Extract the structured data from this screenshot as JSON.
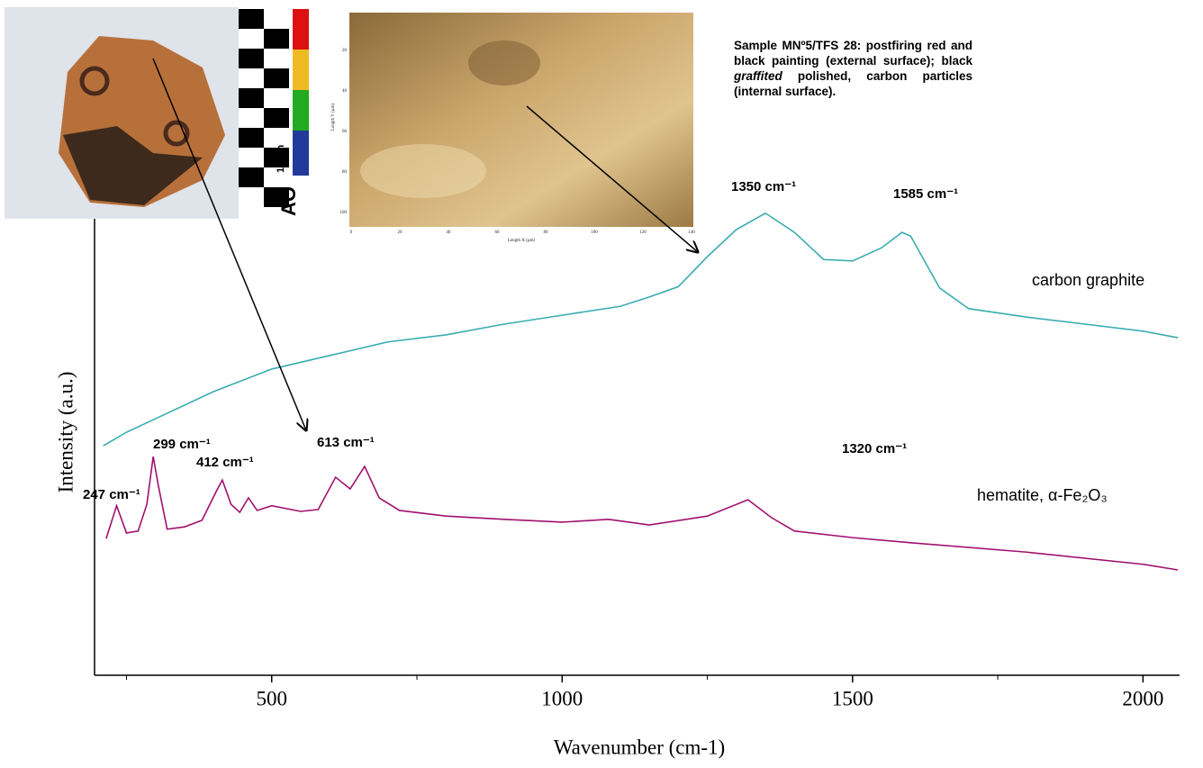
{
  "chart_data": {
    "type": "line",
    "x_label": "Wavenumber (cm-1)",
    "y_label": "Intensity (a.u.)",
    "xlim": [
      195,
      2063
    ],
    "xticks": [
      500,
      1000,
      1500,
      2000
    ],
    "xminorticks": [
      250,
      750,
      1250,
      1750
    ],
    "ylim": [
      0,
      100
    ],
    "series": [
      {
        "name": "carbon graphite",
        "color": "#3aacb0",
        "x": [
          210,
          250,
          300,
          400,
          500,
          600,
          700,
          800,
          900,
          1000,
          1100,
          1150,
          1200,
          1250,
          1300,
          1350,
          1400,
          1450,
          1500,
          1550,
          1585,
          1600,
          1650,
          1700,
          1800,
          1900,
          2000,
          2060
        ],
        "values": [
          49,
          51.9,
          54.8,
          60.6,
          65.4,
          68.3,
          71.2,
          72.7,
          75,
          76.9,
          78.8,
          80.8,
          83,
          89.4,
          95.2,
          98.7,
          94.6,
          88.8,
          88.5,
          91.3,
          94.6,
          93.8,
          82.7,
          78.3,
          76.5,
          75,
          73.5,
          72.1
        ]
      },
      {
        "name": "hematite, α-Fe₂O₃",
        "color": "#a0106e",
        "x": [
          215,
          233,
          250,
          270,
          285,
          296,
          305,
          320,
          350,
          380,
          405,
          415,
          430,
          445,
          460,
          475,
          500,
          550,
          580,
          610,
          635,
          660,
          685,
          720,
          800,
          900,
          1000,
          1080,
          1150,
          1250,
          1320,
          1360,
          1400,
          1500,
          1600,
          1800,
          2000,
          2060
        ],
        "values": [
          29.2,
          36.2,
          30.4,
          30.8,
          36.5,
          46.7,
          40.4,
          31.2,
          31.7,
          33.1,
          39.4,
          41.7,
          36.5,
          34.8,
          37.9,
          35.2,
          36.2,
          35,
          35.4,
          42.3,
          39.8,
          44.6,
          37.9,
          35.2,
          34,
          33.3,
          32.7,
          33.3,
          32.1,
          34,
          37.5,
          33.7,
          30.8,
          29.4,
          28.3,
          26.3,
          23.7,
          22.5
        ]
      }
    ],
    "annotations": [
      "1350 cm⁻¹",
      "1585 cm⁻¹",
      "247 cm⁻¹",
      "299 cm⁻¹",
      "412 cm⁻¹",
      "613 cm⁻¹",
      "1320 cm⁻¹"
    ],
    "caption": [
      "Sample MNº5/TFS 28: postfiring red and black painting (external surface); black ",
      "graffited",
      " polished, carbon particles (internal surface)."
    ]
  },
  "micrograph": {
    "x_label": "Length X (µm)",
    "y_label": "Length Y (µm)",
    "x_ticks": [
      "0",
      "20",
      "40",
      "60",
      "80",
      "100",
      "120",
      "140"
    ],
    "y_ticks": [
      "20",
      "40",
      "60",
      "80",
      "100"
    ]
  },
  "photo": {
    "scale_label": "10 cm",
    "ruler_text": "AO"
  }
}
